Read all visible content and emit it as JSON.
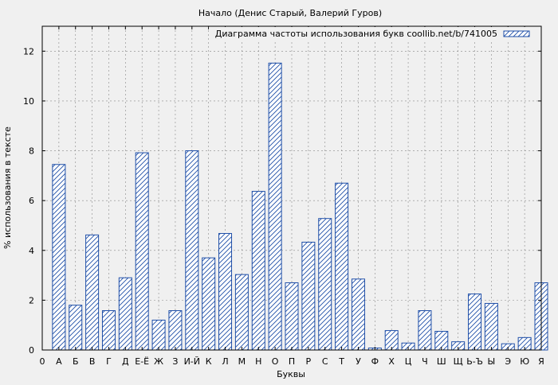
{
  "chart_data": {
    "type": "bar",
    "title": "Начало (Денис Старый, Валерий Гуров)",
    "xlabel": "Буквы",
    "ylabel": "% использования в тексте",
    "legend": {
      "label": "Диаграмма частоты использования букв coollib.net/b/741005",
      "placement": "top-right"
    },
    "x_tick_labels": [
      "0",
      "А",
      "Б",
      "В",
      "Г",
      "Д",
      "Е-Ё",
      "Ж",
      "З",
      "И-Й",
      "К",
      "Л",
      "М",
      "Н",
      "О",
      "П",
      "Р",
      "С",
      "Т",
      "У",
      "Ф",
      "Х",
      "Ц",
      "Ч",
      "Ш",
      "Щ",
      "Ь-Ъ",
      "Ы",
      "Э",
      "Ю",
      "Я"
    ],
    "categories": [
      "А",
      "Б",
      "В",
      "Г",
      "Д",
      "Е-Ё",
      "Ж",
      "З",
      "И-Й",
      "К",
      "Л",
      "М",
      "Н",
      "О",
      "П",
      "Р",
      "С",
      "Т",
      "У",
      "Ф",
      "Х",
      "Ц",
      "Ч",
      "Ш",
      "Щ",
      "Ь-Ъ",
      "Ы",
      "Э",
      "Ю",
      "Я"
    ],
    "values": [
      7.45,
      1.8,
      4.62,
      1.58,
      2.9,
      7.92,
      1.2,
      1.58,
      8.0,
      3.7,
      4.68,
      3.03,
      6.37,
      11.52,
      2.7,
      4.33,
      5.28,
      6.7,
      2.85,
      0.08,
      0.78,
      0.28,
      1.58,
      0.75,
      0.33,
      2.25,
      1.87,
      0.25,
      0.5,
      2.7
    ],
    "x_range": [
      0,
      30
    ],
    "y_ticks": [
      0,
      2,
      4,
      6,
      8,
      10,
      12
    ],
    "ylim": [
      0,
      13
    ],
    "grid": true,
    "colors": {
      "bar_stroke": "#1f4fa8",
      "background": "#f0f0f0",
      "grid": "#888888"
    }
  }
}
